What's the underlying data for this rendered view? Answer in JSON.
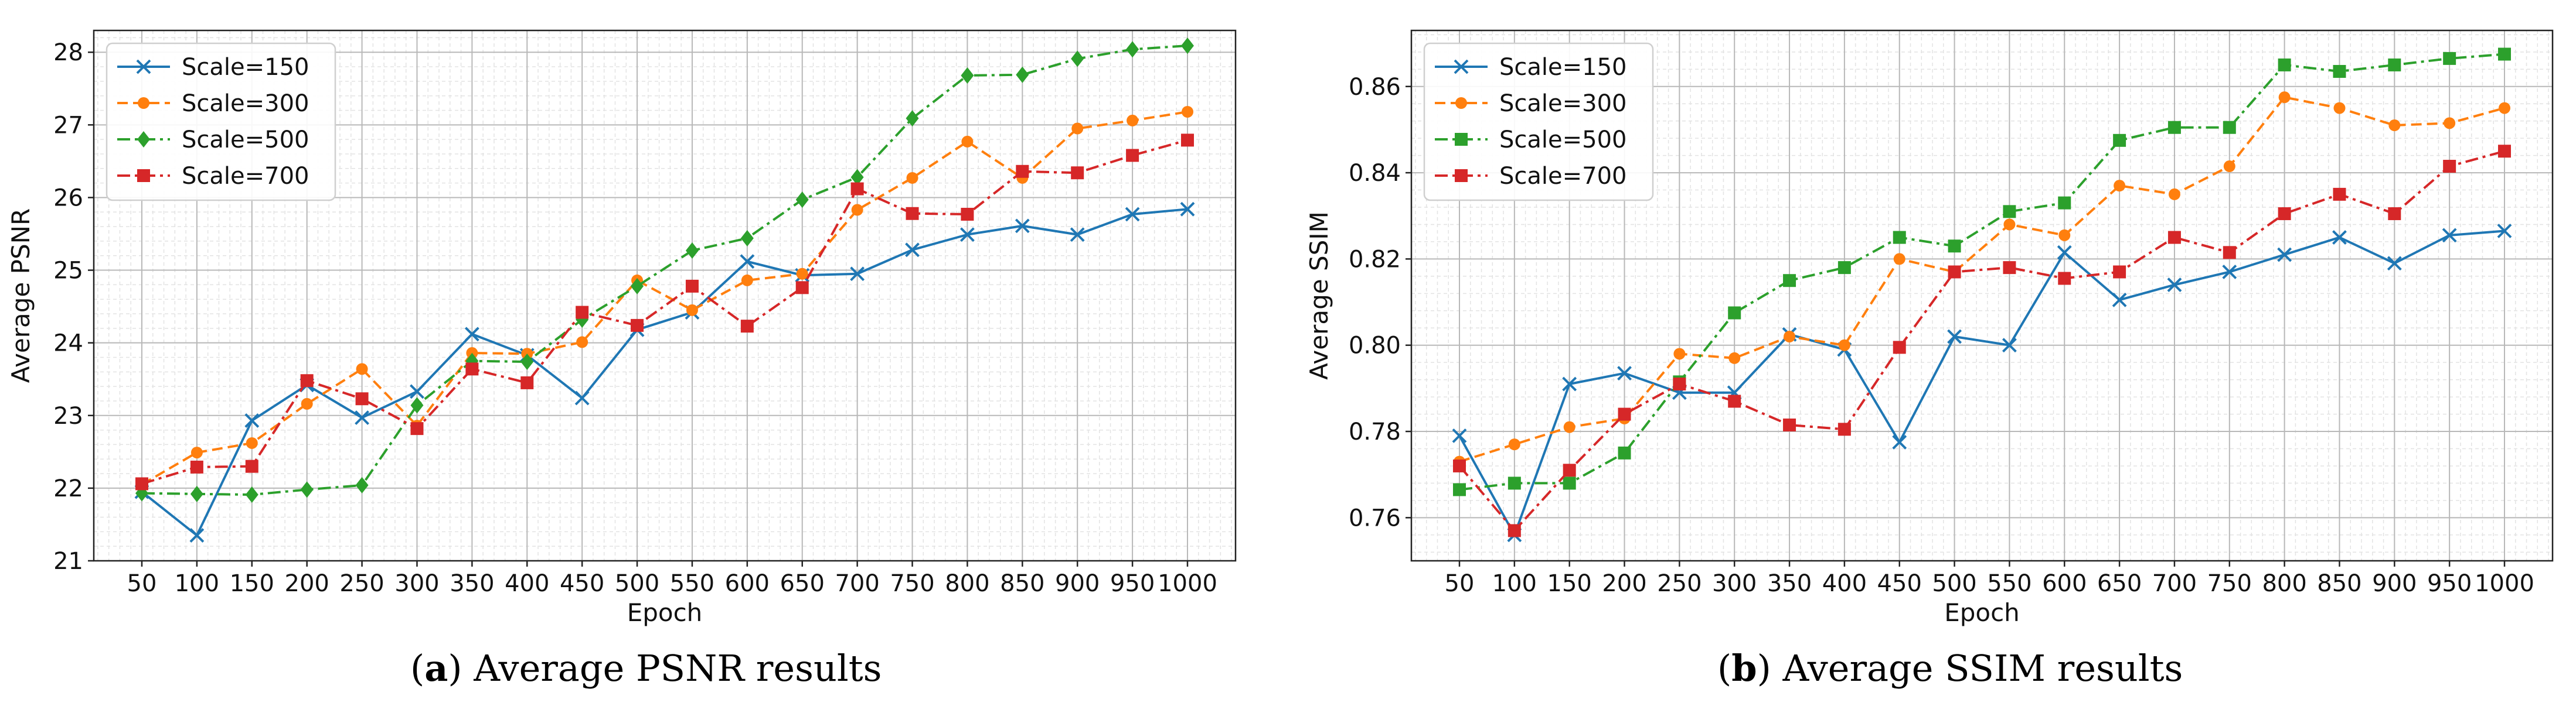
{
  "chart_data": [
    {
      "type": "line",
      "panel_label": "a",
      "caption": "Average PSNR results",
      "title": "",
      "xlabel": "Epoch",
      "ylabel": "Average PSNR",
      "categories": [
        "50",
        "100",
        "150",
        "200",
        "250",
        "300",
        "350",
        "400",
        "450",
        "500",
        "550",
        "600",
        "650",
        "700",
        "750",
        "800",
        "850",
        "900",
        "950",
        "1000"
      ],
      "ylim": [
        21,
        28.3
      ],
      "yticks": [
        21,
        22,
        23,
        24,
        25,
        26,
        27,
        28
      ],
      "grid": true,
      "legend_position": "top-left",
      "series": [
        {
          "name": "Scale=150",
          "color": "#1f77b4",
          "linestyle": "solid",
          "marker": "x",
          "values": [
            21.95,
            21.35,
            22.93,
            23.42,
            22.97,
            23.33,
            24.12,
            23.83,
            23.24,
            24.18,
            24.42,
            25.12,
            24.93,
            24.95,
            25.28,
            25.49,
            25.61,
            25.49,
            25.77,
            25.84
          ]
        },
        {
          "name": "Scale=300",
          "color": "#ff7f0e",
          "linestyle": "dashed",
          "marker": "circle",
          "values": [
            22.05,
            22.49,
            22.62,
            23.16,
            23.64,
            22.86,
            23.86,
            23.85,
            24.01,
            24.86,
            24.45,
            24.86,
            24.95,
            25.83,
            26.27,
            26.77,
            26.27,
            26.95,
            27.06,
            27.18
          ]
        },
        {
          "name": "Scale=500",
          "color": "#2ca02c",
          "linestyle": "dashdot",
          "marker": "diamond",
          "values": [
            21.93,
            21.92,
            21.91,
            21.98,
            22.04,
            23.14,
            23.75,
            23.74,
            24.32,
            24.78,
            25.27,
            25.44,
            25.97,
            26.28,
            27.09,
            27.68,
            27.69,
            27.91,
            28.04,
            28.09
          ]
        },
        {
          "name": "Scale=700",
          "color": "#d62728",
          "linestyle": "dashdot",
          "marker": "square",
          "values": [
            22.06,
            22.29,
            22.3,
            23.48,
            23.23,
            22.82,
            23.64,
            23.45,
            24.42,
            24.24,
            24.78,
            24.23,
            24.76,
            26.12,
            25.78,
            25.77,
            26.36,
            26.34,
            26.58,
            26.79
          ]
        }
      ]
    },
    {
      "type": "line",
      "panel_label": "b",
      "caption": "Average SSIM results",
      "title": "",
      "xlabel": "Epoch",
      "ylabel": "Average SSIM",
      "categories": [
        "50",
        "100",
        "150",
        "200",
        "250",
        "300",
        "350",
        "400",
        "450",
        "500",
        "550",
        "600",
        "650",
        "700",
        "750",
        "800",
        "850",
        "900",
        "950",
        "1000"
      ],
      "ylim": [
        0.75,
        0.873
      ],
      "yticks": [
        "0.76",
        "0.78",
        "0.80",
        "0.82",
        "0.84",
        "0.86"
      ],
      "grid": true,
      "legend_position": "top-left",
      "series": [
        {
          "name": "Scale=150",
          "color": "#1f77b4",
          "linestyle": "solid",
          "marker": "x",
          "values": [
            0.779,
            0.756,
            0.791,
            0.7935,
            0.789,
            0.789,
            0.8025,
            0.799,
            0.7775,
            0.802,
            0.8,
            0.8215,
            0.8105,
            0.814,
            0.817,
            0.821,
            0.825,
            0.819,
            0.8255,
            0.8265
          ]
        },
        {
          "name": "Scale=300",
          "color": "#ff7f0e",
          "linestyle": "dashed",
          "marker": "circle",
          "values": [
            0.773,
            0.777,
            0.781,
            0.783,
            0.798,
            0.797,
            0.802,
            0.8,
            0.82,
            0.817,
            0.828,
            0.8255,
            0.837,
            0.835,
            0.8415,
            0.8575,
            0.855,
            0.851,
            0.8515,
            0.855
          ]
        },
        {
          "name": "Scale=500",
          "color": "#2ca02c",
          "linestyle": "dashdot",
          "marker": "square",
          "values": [
            0.7665,
            0.768,
            0.768,
            0.775,
            0.7915,
            0.8075,
            0.815,
            0.818,
            0.825,
            0.823,
            0.831,
            0.833,
            0.8475,
            0.8505,
            0.8505,
            0.865,
            0.8635,
            0.865,
            0.8665,
            0.8675
          ]
        },
        {
          "name": "Scale=700",
          "color": "#d62728",
          "linestyle": "dashdot",
          "marker": "square",
          "values": [
            0.772,
            0.757,
            0.771,
            0.784,
            0.791,
            0.787,
            0.7815,
            0.7805,
            0.7995,
            0.817,
            0.818,
            0.8155,
            0.817,
            0.825,
            0.8215,
            0.8305,
            0.835,
            0.8305,
            0.8415,
            0.845
          ]
        }
      ]
    }
  ]
}
